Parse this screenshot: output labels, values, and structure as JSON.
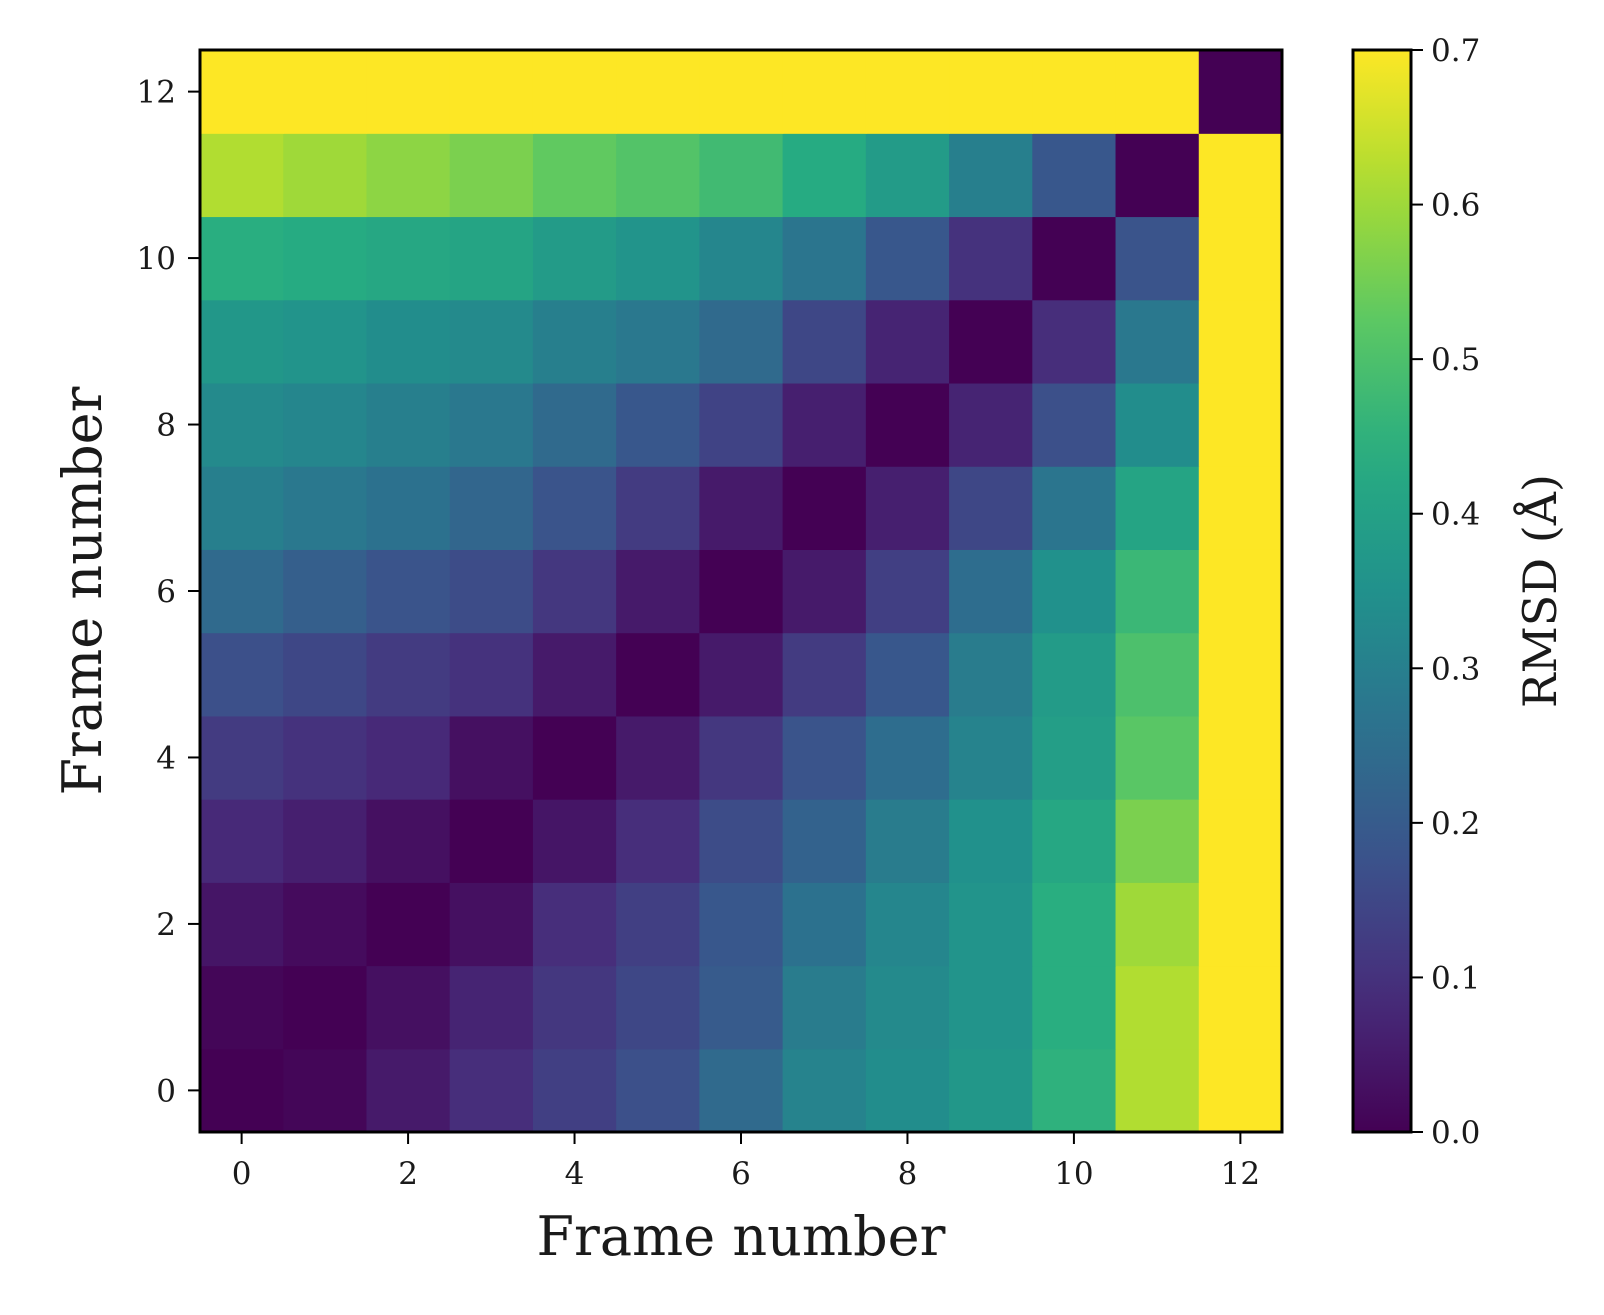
{
  "chart_data": {
    "type": "heatmap",
    "title": "",
    "xlabel": "Frame number",
    "ylabel": "Frame number",
    "x": [
      0,
      1,
      2,
      3,
      4,
      5,
      6,
      7,
      8,
      9,
      10,
      11,
      12
    ],
    "y": [
      0,
      1,
      2,
      3,
      4,
      5,
      6,
      7,
      8,
      9,
      10,
      11,
      12
    ],
    "xlim": [
      -0.5,
      12.5
    ],
    "ylim": [
      -0.5,
      12.5
    ],
    "xticks": [
      "0",
      "2",
      "4",
      "6",
      "8",
      "10",
      "12"
    ],
    "yticks": [
      "0",
      "2",
      "4",
      "6",
      "8",
      "10",
      "12"
    ],
    "colormap": "viridis",
    "vmin": 0.0,
    "vmax": 0.7,
    "colorbar": {
      "label": "RMSD (Å)",
      "ticks": [
        "0.0",
        "0.1",
        "0.2",
        "0.3",
        "0.4",
        "0.5",
        "0.6",
        "0.7"
      ]
    },
    "values": [
      [
        0.0,
        0.01,
        0.05,
        0.09,
        0.13,
        0.17,
        0.24,
        0.31,
        0.34,
        0.37,
        0.45,
        0.62,
        0.7
      ],
      [
        0.01,
        0.0,
        0.03,
        0.07,
        0.11,
        0.15,
        0.2,
        0.29,
        0.33,
        0.36,
        0.44,
        0.62,
        0.7
      ],
      [
        0.04,
        0.02,
        0.0,
        0.03,
        0.09,
        0.13,
        0.19,
        0.26,
        0.32,
        0.36,
        0.44,
        0.6,
        0.7
      ],
      [
        0.08,
        0.06,
        0.03,
        0.0,
        0.04,
        0.09,
        0.16,
        0.22,
        0.29,
        0.35,
        0.42,
        0.56,
        0.7
      ],
      [
        0.12,
        0.1,
        0.08,
        0.03,
        0.0,
        0.05,
        0.11,
        0.18,
        0.25,
        0.31,
        0.39,
        0.52,
        0.7
      ],
      [
        0.17,
        0.15,
        0.12,
        0.1,
        0.05,
        0.0,
        0.05,
        0.12,
        0.19,
        0.29,
        0.38,
        0.5,
        0.7
      ],
      [
        0.24,
        0.21,
        0.18,
        0.16,
        0.11,
        0.05,
        0.0,
        0.05,
        0.13,
        0.25,
        0.35,
        0.47,
        0.7
      ],
      [
        0.3,
        0.28,
        0.26,
        0.23,
        0.18,
        0.12,
        0.05,
        0.0,
        0.06,
        0.15,
        0.27,
        0.41,
        0.7
      ],
      [
        0.33,
        0.32,
        0.3,
        0.28,
        0.24,
        0.19,
        0.14,
        0.06,
        0.0,
        0.07,
        0.17,
        0.34,
        0.7
      ],
      [
        0.37,
        0.36,
        0.34,
        0.33,
        0.3,
        0.28,
        0.24,
        0.15,
        0.07,
        0.0,
        0.09,
        0.28,
        0.7
      ],
      [
        0.44,
        0.43,
        0.42,
        0.41,
        0.38,
        0.36,
        0.32,
        0.27,
        0.19,
        0.1,
        0.0,
        0.18,
        0.7
      ],
      [
        0.62,
        0.6,
        0.58,
        0.56,
        0.53,
        0.51,
        0.48,
        0.43,
        0.38,
        0.3,
        0.19,
        0.0,
        0.7
      ],
      [
        0.7,
        0.7,
        0.7,
        0.7,
        0.7,
        0.7,
        0.7,
        0.7,
        0.7,
        0.7,
        0.7,
        0.7,
        0.0
      ]
    ]
  }
}
